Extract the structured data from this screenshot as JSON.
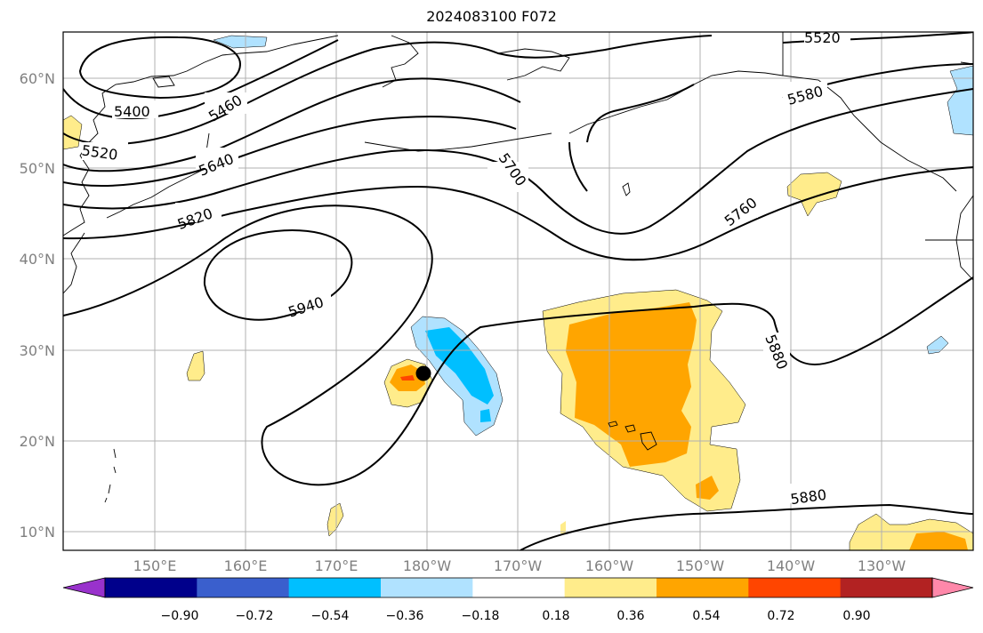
{
  "title": "2024083100 F072",
  "lat_labels": [
    "60°N",
    "50°N",
    "40°N",
    "30°N",
    "20°N",
    "10°N"
  ],
  "lon_labels": [
    "150°E",
    "160°E",
    "170°E",
    "180°W",
    "170°W",
    "160°W",
    "150°W",
    "140°W",
    "130°W"
  ],
  "contour_labels": [
    "5520",
    "5400",
    "5460",
    "5520",
    "5640",
    "5820",
    "5700",
    "5580",
    "5760",
    "5940",
    "5880",
    "5880"
  ],
  "colorbar": {
    "tick_labels": [
      "−0.90",
      "−0.72",
      "−0.54",
      "−0.36",
      "−0.18",
      "0.18",
      "0.36",
      "0.54",
      "0.72",
      "0.90"
    ],
    "colors": [
      "#9932cc",
      "#00008b",
      "#3a5fcd",
      "#00bfff",
      "#b0e2ff",
      "#ffffff",
      "#ffec8b",
      "#ffa500",
      "#ff4500",
      "#b22222",
      "#ff88aa"
    ]
  },
  "marker": "storm-center"
}
